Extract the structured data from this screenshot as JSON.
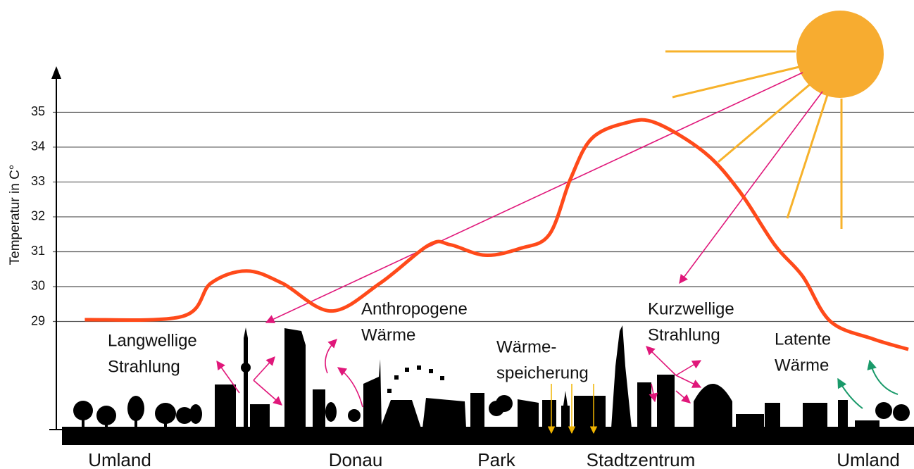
{
  "chart_data": {
    "type": "line",
    "y_label": "Temperatur in C°",
    "ylim": [
      25.9,
      36.2
    ],
    "yticks": [
      29,
      30,
      31,
      32,
      33,
      34,
      35
    ],
    "grid": true,
    "xlim": [
      0,
      100
    ],
    "series": [
      {
        "color": "#ff4a1a",
        "x": [
          2.7,
          14.3,
          17.6,
          21.8,
          26,
          31.8,
          37.6,
          43.4,
          45.9,
          50,
          54.2,
          57.6,
          60.1,
          62.6,
          66.7,
          70.1,
          75.9,
          80,
          84.2,
          87.5,
          90.8,
          95.8,
          100
        ],
        "values": [
          29.05,
          29.15,
          30.1,
          30.45,
          30.1,
          29.3,
          30.1,
          31.2,
          31.2,
          30.9,
          31.1,
          31.5,
          33.1,
          34.25,
          34.7,
          34.7,
          33.85,
          32.75,
          31.2,
          30.3,
          29.0,
          28.5,
          28.2
        ]
      }
    ],
    "locations": [
      "Umland",
      "Donau",
      "Park",
      "Stadtzentrum",
      "Umland"
    ],
    "annotations": [
      {
        "lines": [
          "Langwellige",
          "Strahlung"
        ]
      },
      {
        "lines": [
          "Anthropogene",
          "Wärme"
        ]
      },
      {
        "lines": [
          "Wärme-",
          "speicherung"
        ]
      },
      {
        "lines": [
          "Kurzwellige",
          "Strahlung"
        ]
      },
      {
        "lines": [
          "Latente",
          "Wärme"
        ]
      }
    ]
  }
}
